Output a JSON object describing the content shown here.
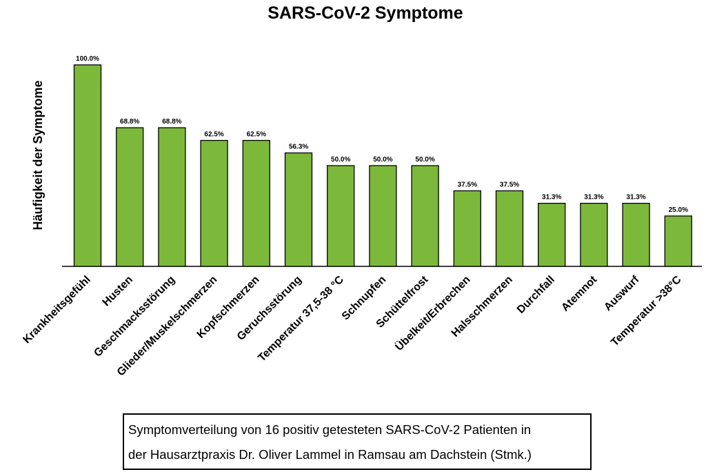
{
  "chart_data": {
    "type": "bar",
    "title": "SARS-CoV-2 Symptome",
    "ylabel": "Häufigkeit der Symptome",
    "xlabel": "",
    "ylim": [
      0,
      100
    ],
    "categories": [
      "Krankheitsgefühl",
      "Husten",
      "Geschmacksstörung",
      "Glieder/Muskelschmerzen",
      "Kopfschmerzen",
      "Geruchsstörung",
      "Temperatur 37,5-38 °C",
      "Schnupfen",
      "Schüttelfrost",
      "Übelkeit/Erbrechen",
      "Halsschmerzen",
      "Durchfall",
      "Atemnot",
      "Auswurf",
      "Temperatur >38°C"
    ],
    "values": [
      100.0,
      68.8,
      68.8,
      62.5,
      62.5,
      56.3,
      50.0,
      50.0,
      50.0,
      37.5,
      37.5,
      31.3,
      31.3,
      31.3,
      25.0
    ],
    "value_labels": [
      "100.0%",
      "68.8%",
      "68.8%",
      "62.5%",
      "62.5%",
      "56.3%",
      "50.0%",
      "50.0%",
      "50.0%",
      "37.5%",
      "37.5%",
      "31.3%",
      "31.3%",
      "31.3%",
      "25.0%"
    ],
    "bar_color": "#7cb83a",
    "grid": false,
    "legend": "none"
  },
  "caption": {
    "line1": "Symptomverteilung von 16 positiv getesteten SARS-CoV-2 Patienten in",
    "line2": "der Hausarztpraxis Dr. Oliver Lammel in Ramsau am Dachstein (Stmk.)"
  }
}
